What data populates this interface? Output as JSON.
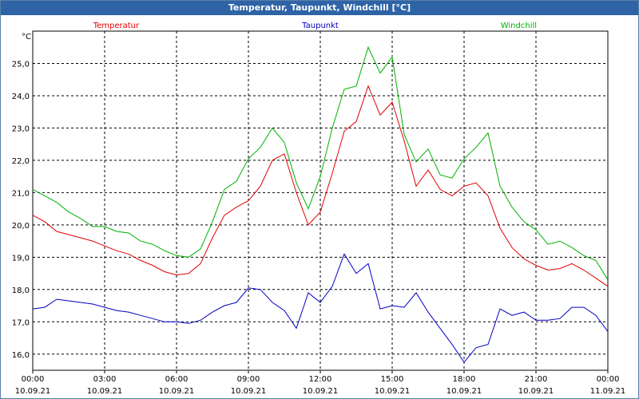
{
  "window": {
    "title": "Temperatur, Taupunkt, Windchill [°C]"
  },
  "chart_data": {
    "type": "line",
    "ylabel": "°C",
    "ylim": [
      15.5,
      26.0
    ],
    "yticks": [
      16.0,
      17.0,
      18.0,
      19.0,
      20.0,
      21.0,
      22.0,
      23.0,
      24.0,
      25.0
    ],
    "ytick_labels": [
      "16,0",
      "17,0",
      "18,0",
      "19,0",
      "20,0",
      "21,0",
      "22,0",
      "23,0",
      "24,0",
      "25,0"
    ],
    "xlim": [
      0,
      24
    ],
    "xticks": [
      0,
      3,
      6,
      9,
      12,
      15,
      18,
      21,
      24
    ],
    "xtick_labels": [
      [
        "00:00",
        "10.09.21"
      ],
      [
        "03:00",
        "10.09.21"
      ],
      [
        "06:00",
        "10.09.21"
      ],
      [
        "09:00",
        "10.09.21"
      ],
      [
        "12:00",
        "10.09.21"
      ],
      [
        "15:00",
        "10.09.21"
      ],
      [
        "18:00",
        "10.09.21"
      ],
      [
        "21:00",
        "10.09.21"
      ],
      [
        "00:00",
        "11.09.21"
      ]
    ],
    "grid": true,
    "legend_placement": "top",
    "x": [
      0,
      0.5,
      1,
      1.5,
      2,
      2.5,
      3,
      3.5,
      4,
      4.5,
      5,
      5.5,
      6,
      6.5,
      7,
      7.5,
      8,
      8.5,
      9,
      9.5,
      10,
      10.5,
      11,
      11.5,
      12,
      12.5,
      13,
      13.5,
      14,
      14.5,
      15,
      15.5,
      16,
      16.5,
      17,
      17.5,
      18,
      18.5,
      19,
      19.5,
      20,
      20.5,
      21,
      21.5,
      22,
      22.5,
      23,
      23.5,
      24
    ],
    "series": [
      {
        "name": "Temperatur",
        "color": "#e00000",
        "values": [
          20.3,
          20.1,
          19.8,
          19.7,
          19.6,
          19.5,
          19.35,
          19.2,
          19.1,
          18.9,
          18.75,
          18.55,
          18.45,
          18.5,
          18.8,
          19.6,
          20.3,
          20.55,
          20.75,
          21.2,
          22.0,
          22.2,
          21.0,
          20.0,
          20.4,
          21.6,
          22.9,
          23.2,
          24.3,
          23.4,
          23.8,
          22.6,
          21.2,
          21.7,
          21.1,
          20.9,
          21.2,
          21.3,
          20.9,
          19.9,
          19.3,
          18.95,
          18.75,
          18.6,
          18.65,
          18.8,
          18.6,
          18.35,
          18.1
        ]
      },
      {
        "name": "Taupunkt",
        "color": "#0000c0",
        "values": [
          17.4,
          17.45,
          17.7,
          17.65,
          17.6,
          17.55,
          17.45,
          17.35,
          17.3,
          17.2,
          17.1,
          17.0,
          17.0,
          16.95,
          17.05,
          17.3,
          17.5,
          17.6,
          18.05,
          18.0,
          17.6,
          17.35,
          16.8,
          17.9,
          17.6,
          18.1,
          19.1,
          18.5,
          18.8,
          17.4,
          17.5,
          17.45,
          17.9,
          17.3,
          16.8,
          16.3,
          15.75,
          16.2,
          16.3,
          17.4,
          17.2,
          17.3,
          17.05,
          17.05,
          17.1,
          17.45,
          17.45,
          17.2,
          16.7
        ]
      },
      {
        "name": "Windchill",
        "color": "#00b000",
        "values": [
          21.1,
          20.9,
          20.7,
          20.4,
          20.2,
          19.95,
          19.95,
          19.8,
          19.75,
          19.5,
          19.4,
          19.2,
          19.05,
          19.0,
          19.25,
          20.1,
          21.1,
          21.35,
          22.05,
          22.4,
          23.0,
          22.55,
          21.3,
          20.5,
          21.5,
          23.0,
          24.2,
          24.3,
          25.5,
          24.7,
          25.2,
          22.8,
          21.95,
          22.35,
          21.55,
          21.45,
          22.05,
          22.4,
          22.85,
          21.2,
          20.55,
          20.1,
          19.85,
          19.4,
          19.5,
          19.3,
          19.05,
          18.9,
          18.3
        ]
      }
    ]
  }
}
